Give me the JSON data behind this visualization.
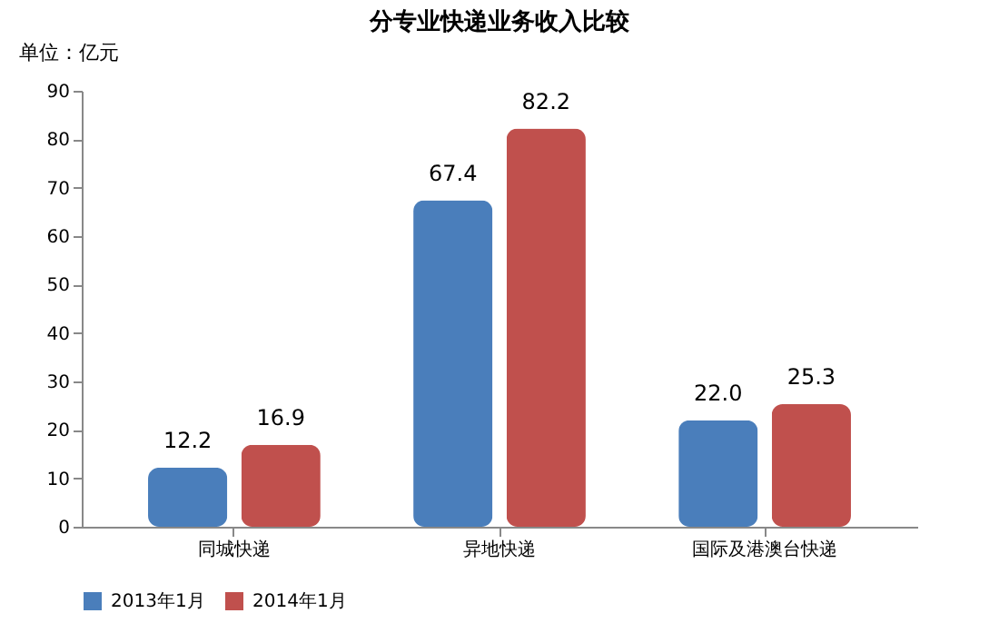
{
  "chart_data": {
    "type": "bar",
    "title": "分专业快递业务收入比较",
    "ylabel": "单位：亿元",
    "categories": [
      "同城快递",
      "异地快递",
      "国际及港澳台快递"
    ],
    "series": [
      {
        "name": "2013年1月",
        "color": "#4a7ebb",
        "values": [
          12.2,
          67.4,
          22.0
        ],
        "value_labels": [
          "12.2",
          "67.4",
          "22.0"
        ]
      },
      {
        "name": "2014年1月",
        "color": "#c0504d",
        "values": [
          16.9,
          82.2,
          25.3
        ],
        "value_labels": [
          "16.9",
          "82.2",
          "25.3"
        ]
      }
    ],
    "ylim": [
      0,
      90
    ],
    "yticks": [
      0,
      10,
      20,
      30,
      40,
      50,
      60,
      70,
      80,
      90
    ],
    "grid": false,
    "legend": "bottom"
  }
}
